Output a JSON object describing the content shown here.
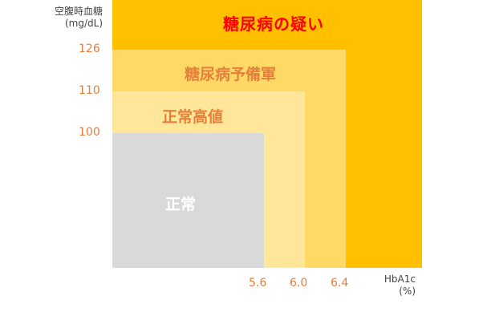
{
  "y_axis": {
    "title": "空腹時血糖",
    "unit": "(mg/dL)",
    "ticks": [
      "126",
      "110",
      "100"
    ]
  },
  "x_axis": {
    "title": "HbA1c",
    "unit": "(%)",
    "ticks": [
      "5.6",
      "6.0",
      "6.4"
    ]
  },
  "zones": {
    "diabetes": {
      "label": "糖尿病の疑い",
      "color": "#ffc000",
      "label_color": "#ff0000"
    },
    "prediabetes": {
      "label": "糖尿病予備軍",
      "color": "#ffd966",
      "label_color": "#e57f3b"
    },
    "high_normal": {
      "label": "正常高値",
      "color": "#ffe699",
      "label_color": "#e57f3b"
    },
    "normal": {
      "label": "正常",
      "color": "#d9d9d9",
      "label_color": "#ffffff"
    }
  }
}
